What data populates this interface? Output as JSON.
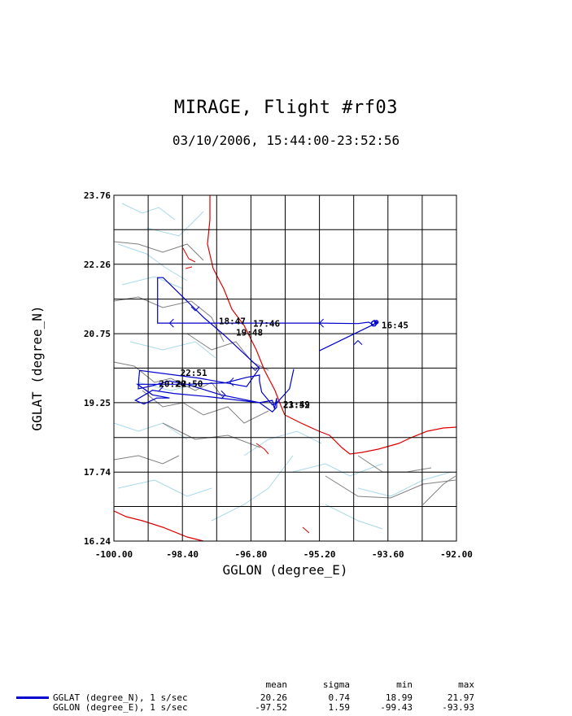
{
  "chart_data": {
    "type": "line",
    "title": "MIRAGE, Flight #rf03",
    "subtitle": "03/10/2006, 15:44:00-23:52:56",
    "xlabel": "GGLON (degree_E)",
    "ylabel": "GGLAT (degree_N)",
    "xlim": [
      -100.0,
      -92.0
    ],
    "ylim": [
      16.24,
      23.76
    ],
    "x_ticks": [
      "-100.00",
      "-98.40",
      "-96.80",
      "-95.20",
      "-93.60",
      "-92.00"
    ],
    "y_ticks": [
      "16.24",
      "17.74",
      "19.25",
      "20.75",
      "22.26",
      "23.76"
    ],
    "grid": true,
    "series": [
      {
        "name": "GGLAT (degree_N), 1 s/sec",
        "color": "#0000cc",
        "points": [
          [
            -93.93,
            21.05
          ],
          [
            -93.85,
            20.99
          ],
          [
            -93.95,
            20.95
          ],
          [
            -94.05,
            21.0
          ],
          [
            -94.3,
            20.97
          ],
          [
            -95.2,
            20.98
          ],
          [
            -96.8,
            20.98
          ],
          [
            -98.2,
            20.98
          ],
          [
            -98.98,
            20.98
          ],
          [
            -98.98,
            21.97
          ],
          [
            -98.85,
            21.97
          ],
          [
            -97.9,
            21.1
          ],
          [
            -97.4,
            20.7
          ],
          [
            -96.6,
            20.0
          ],
          [
            -96.9,
            19.6
          ],
          [
            -98.0,
            19.78
          ],
          [
            -99.4,
            19.95
          ],
          [
            -99.42,
            19.75
          ],
          [
            -99.43,
            19.55
          ],
          [
            -99.1,
            19.62
          ],
          [
            -98.7,
            19.72
          ],
          [
            -98.3,
            19.65
          ],
          [
            -97.5,
            19.42
          ],
          [
            -96.6,
            19.25
          ],
          [
            -96.3,
            19.3
          ],
          [
            -96.25,
            19.12
          ],
          [
            -96.2,
            19.35
          ],
          [
            -96.2,
            19.15
          ],
          [
            -96.3,
            19.05
          ],
          [
            -96.6,
            19.25
          ],
          [
            -97.8,
            19.38
          ],
          [
            -98.6,
            19.45
          ],
          [
            -99.1,
            19.52
          ],
          [
            -99.5,
            19.3
          ],
          [
            -99.3,
            19.22
          ],
          [
            -99.0,
            19.35
          ],
          [
            -98.7,
            19.35
          ],
          [
            -99.1,
            19.42
          ],
          [
            -99.45,
            19.65
          ],
          [
            -98.3,
            19.65
          ],
          [
            -97.4,
            19.68
          ],
          [
            -96.9,
            19.8
          ],
          [
            -96.6,
            19.85
          ],
          [
            -96.6,
            19.72
          ],
          [
            -96.55,
            19.48
          ],
          [
            -96.3,
            19.2
          ],
          [
            -96.2,
            19.24
          ],
          [
            -95.9,
            19.55
          ],
          [
            -95.8,
            19.98
          ]
        ],
        "extra_segment": [
          [
            -95.2,
            20.38
          ],
          [
            -93.85,
            20.99
          ]
        ]
      }
    ],
    "time_labels": [
      {
        "text": "16:45",
        "lon": -93.75,
        "lat": 20.94
      },
      {
        "text": "17:46",
        "lon": -96.75,
        "lat": 20.97
      },
      {
        "text": "18:47",
        "lon": -97.55,
        "lat": 21.03
      },
      {
        "text": "19:48",
        "lon": -97.15,
        "lat": 20.78
      },
      {
        "text": "22:51",
        "lon": -98.45,
        "lat": 19.9
      },
      {
        "text": "20:20",
        "lon": -98.95,
        "lat": 19.66
      },
      {
        "text": "22:50",
        "lon": -98.55,
        "lat": 19.66
      },
      {
        "text": "23:52",
        "lon": -96.05,
        "lat": 19.2
      },
      {
        "text": "21:49",
        "lon": -96.05,
        "lat": 19.21
      }
    ],
    "arrows": [
      {
        "lon": -95.2,
        "lat": 20.98,
        "dir": "left"
      },
      {
        "lon": -98.7,
        "lat": 20.98,
        "dir": "left"
      },
      {
        "lon": -98.1,
        "lat": 21.25,
        "dir": "down"
      },
      {
        "lon": -96.7,
        "lat": 19.95,
        "dir": "down"
      },
      {
        "lon": -97.3,
        "lat": 19.7,
        "dir": "left"
      },
      {
        "lon": -97.4,
        "lat": 19.42,
        "dir": "right"
      },
      {
        "lon": -98.85,
        "lat": 19.6,
        "dir": "right"
      },
      {
        "lon": -94.3,
        "lat": 20.6,
        "dir": "up"
      }
    ],
    "map": {
      "coastline_color": "#e00000",
      "state_border_color": "#808080",
      "river_color": "#a8d8e8"
    }
  },
  "stats": {
    "headers": {
      "mean": "mean",
      "sigma": "sigma",
      "min": "min",
      "max": "max"
    },
    "rows": [
      {
        "label": "GGLAT (degree_N), 1 s/sec",
        "mean": "20.26",
        "sigma": "0.74",
        "min": "18.99",
        "max": "21.97"
      },
      {
        "label": "GGLON (degree_E), 1 s/sec",
        "mean": "-97.52",
        "sigma": "1.59",
        "min": "-99.43",
        "max": "-93.93"
      }
    ]
  }
}
